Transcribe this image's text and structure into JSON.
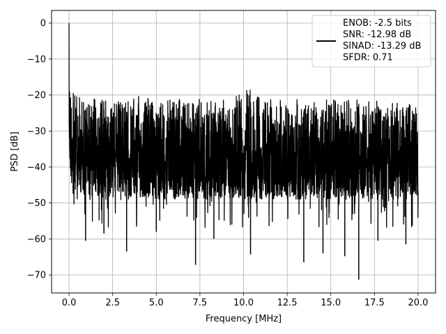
{
  "chart_data": {
    "type": "line",
    "title": "",
    "xlabel": "Frequency [MHz]",
    "ylabel": "PSD [dB]",
    "xlim": [
      -1.0,
      21.0
    ],
    "ylim": [
      -75.0,
      3.5
    ],
    "xticks": [
      0.0,
      2.5,
      5.0,
      7.5,
      10.0,
      12.5,
      15.0,
      17.5,
      20.0
    ],
    "xtick_labels": [
      "0.0",
      "2.5",
      "5.0",
      "7.5",
      "10.0",
      "12.5",
      "15.0",
      "17.5",
      "20.0"
    ],
    "yticks": [
      0,
      -10,
      -20,
      -30,
      -40,
      -50,
      -60,
      -70
    ],
    "ytick_labels": [
      "0",
      "−10",
      "−20",
      "−30",
      "−40",
      "−50",
      "−60",
      "−70"
    ],
    "grid": true,
    "legend_position": "top-right",
    "line_color": "#000000",
    "legend": [
      "ENOB: -2.5 bits",
      "SNR: -12.98 dB",
      "SINAD: -13.29 dB",
      "SFDR: 0.71"
    ],
    "series": [
      {
        "x": [
          0.0,
          0.02,
          0.05,
          0.1,
          0.15,
          0.2,
          0.3,
          0.5,
          1.0,
          2.0,
          3.0,
          4.0,
          5.0,
          6.0,
          7.0,
          8.0,
          9.0,
          10.0,
          11.0,
          12.0,
          13.0,
          14.0,
          15.0,
          16.0,
          17.0,
          18.0,
          19.0,
          20.0
        ],
        "upper": [
          0,
          -10,
          -14,
          -16,
          -17,
          -19,
          -19,
          -20,
          -20,
          -20,
          -21,
          -20,
          -21,
          -21,
          -21,
          -21,
          -21,
          -16,
          -21,
          -21,
          -21,
          -21,
          -21,
          -21,
          -21,
          -21,
          -22,
          -21
        ],
        "lower": [
          -35,
          -39,
          -42,
          -44,
          -45,
          -45,
          -46,
          -47,
          -48,
          -49,
          -49,
          -49,
          -49,
          -49,
          -49,
          -49,
          -49,
          -49,
          -49,
          -49,
          -49,
          -49,
          -49,
          -49,
          -49,
          -49,
          -49,
          -49
        ]
      }
    ],
    "notable_dips": [
      {
        "x": 0.95,
        "y": -60.5
      },
      {
        "x": 2.0,
        "y": -58.5
      },
      {
        "x": 3.3,
        "y": -63.5
      },
      {
        "x": 5.0,
        "y": -58.0
      },
      {
        "x": 7.25,
        "y": -67.2
      },
      {
        "x": 8.3,
        "y": -60.0
      },
      {
        "x": 10.4,
        "y": -64.3
      },
      {
        "x": 13.45,
        "y": -66.5
      },
      {
        "x": 14.55,
        "y": -64.0
      },
      {
        "x": 15.8,
        "y": -64.8
      },
      {
        "x": 16.6,
        "y": -71.3
      },
      {
        "x": 17.7,
        "y": -60.5
      },
      {
        "x": 19.3,
        "y": -61.5
      }
    ]
  }
}
